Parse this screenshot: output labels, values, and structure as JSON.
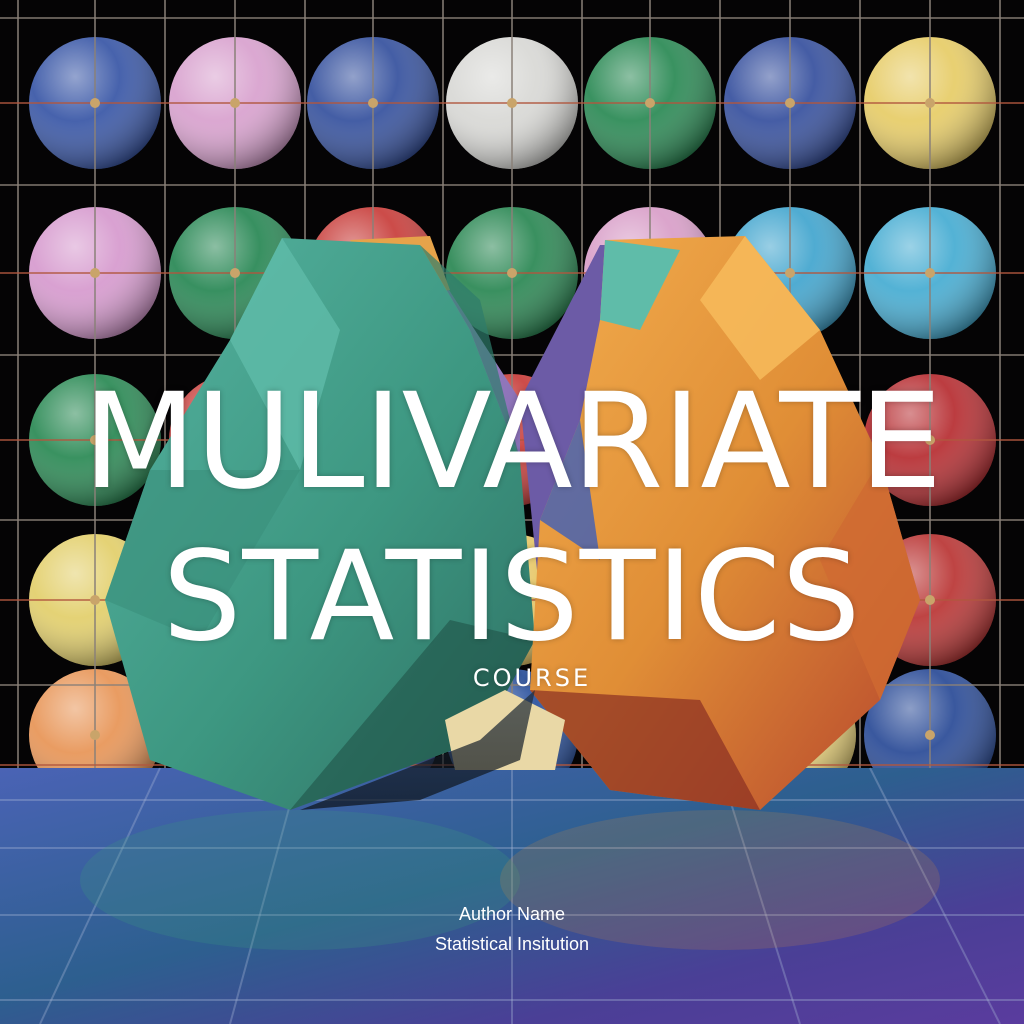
{
  "cover": {
    "title_line_1": "MULIVARIATE",
    "title_line_2": "STATISTICS",
    "subtitle": "COURSE",
    "author": "Author Name",
    "institution": "Statistical Insitution"
  },
  "colors": {
    "background": "#050405",
    "grid_rod": "#8a8078",
    "text": "#ffffff",
    "teal_gem": "#3f9a86",
    "orange_gem": "#e59a3a",
    "purple_gem": "#9a7cc4",
    "floor": "#3a4f93"
  },
  "sphere_wall": {
    "rows": [
      [
        "#3d5aa8",
        "#d9a3cf",
        "#3a55a0",
        "#d9d9d6",
        "#2f8c58",
        "#3b54a0",
        "#e7cd6a"
      ],
      [
        "#d79ccf",
        "#2d8a58",
        "#c9423f",
        "#2f8a57",
        "#d9a0c9",
        "#46a7cf",
        "#4aaed3"
      ],
      [
        "#2f8c58",
        "#c9423f",
        "#2f8c58",
        "#c9423f",
        "#2f8c58",
        "#3fa0cf",
        "#b83236"
      ],
      [
        "#e3d06e",
        "#e7c86a",
        "#e7c86a",
        "#e7c86a",
        "#e7c86a",
        "#e7c86a",
        "#bb3a39"
      ],
      [
        "#e8975a",
        "#e7e1d6",
        "#3a55a0",
        "#2f55a0",
        "#e8975a",
        "#e9d27a",
        "#2f4f99"
      ]
    ]
  }
}
